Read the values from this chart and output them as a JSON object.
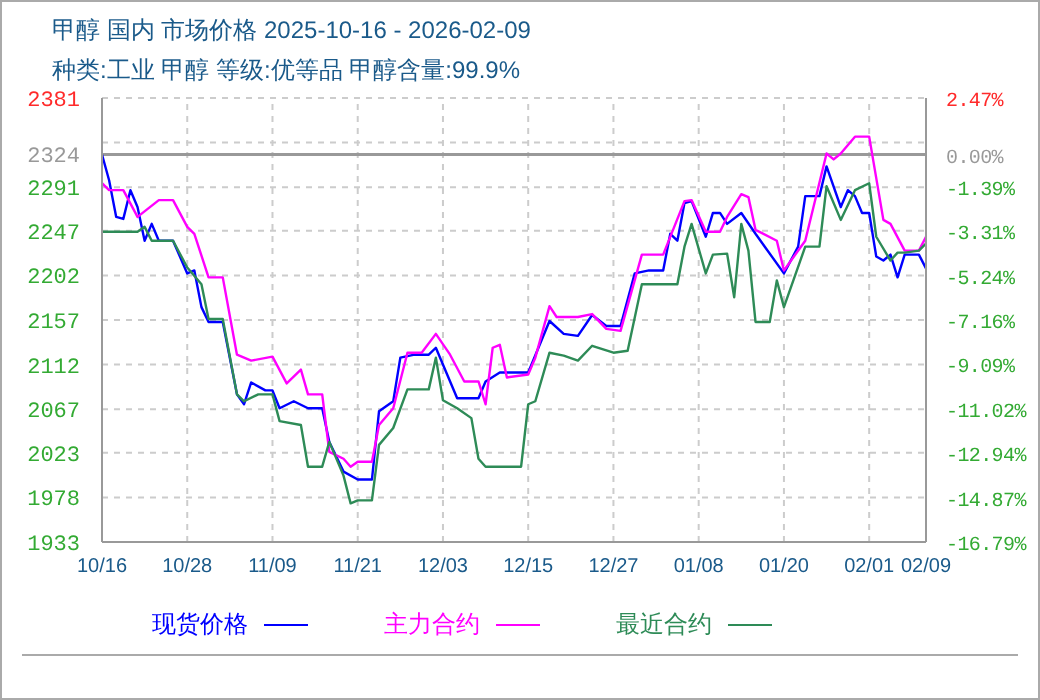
{
  "chart_data": {
    "type": "line",
    "title": "甲醇 国内 市场价格 2025-10-16 - 2026-02-09",
    "subtitle": "种类:工业 甲醇 等级:优等品 甲醇含量:99.9%",
    "xlim": [
      "2025-10-16",
      "2026-02-09"
    ],
    "xticks": [
      {
        "value": "2025-10-16",
        "label": "10/16"
      },
      {
        "value": "2025-10-28",
        "label": "10/28"
      },
      {
        "value": "2025-11-09",
        "label": "11/09"
      },
      {
        "value": "2025-11-21",
        "label": "11/21"
      },
      {
        "value": "2025-12-03",
        "label": "12/03"
      },
      {
        "value": "2025-12-15",
        "label": "12/15"
      },
      {
        "value": "2025-12-27",
        "label": "12/27"
      },
      {
        "value": "2026-01-08",
        "label": "01/08"
      },
      {
        "value": "2026-01-20",
        "label": "01/20"
      },
      {
        "value": "2026-02-01",
        "label": "02/01"
      },
      {
        "value": "2026-02-09",
        "label": "02/09"
      }
    ],
    "ylim": [
      1933,
      2381
    ],
    "yticks": [
      1933,
      1978,
      2023,
      2067,
      2112,
      2157,
      2202,
      2247,
      2291,
      2324,
      {
        "value": 2336,
        "label": null
      },
      2381
    ],
    "y2lim": [
      -16.79,
      2.47
    ],
    "y2ticks": [
      {
        "value": -16.79,
        "label": "-16.79%"
      },
      {
        "value": -14.87,
        "label": "-14.87%"
      },
      {
        "value": -12.94,
        "label": "-12.94%"
      },
      {
        "value": -11.02,
        "label": "-11.02%"
      },
      {
        "value": -9.09,
        "label": "-9.09%"
      },
      {
        "value": -7.16,
        "label": "-7.16%"
      },
      {
        "value": -5.24,
        "label": "-5.24%"
      },
      {
        "value": -3.31,
        "label": "-3.31%"
      },
      {
        "value": -1.39,
        "label": "-1.39%"
      },
      {
        "value": 0,
        "label": "0.00%"
      },
      {
        "value": 2.47,
        "label": "2.47%"
      }
    ],
    "ref_lines": [
      {
        "axis": "y",
        "value": 2324,
        "color": "#999999"
      }
    ],
    "grid": true,
    "legend": "bottom",
    "line_style": "solid",
    "series": [
      {
        "name": "现货价格",
        "color": "#0000ff",
        "x": [
          "2025-10-16",
          "2025-10-17",
          "2025-10-18",
          "2025-10-19",
          "2025-10-20",
          "2025-10-21",
          "2025-10-22",
          "2025-10-23",
          "2025-10-24",
          "2025-10-26",
          "2025-10-28",
          "2025-10-29",
          "2025-10-30",
          "2025-10-31",
          "2025-11-02",
          "2025-11-04",
          "2025-11-05",
          "2025-11-06",
          "2025-11-08",
          "2025-11-09",
          "2025-11-10",
          "2025-11-12",
          "2025-11-14",
          "2025-11-16",
          "2025-11-17",
          "2025-11-19",
          "2025-11-21",
          "2025-11-23",
          "2025-11-24",
          "2025-11-26",
          "2025-11-27",
          "2025-11-29",
          "2025-12-01",
          "2025-12-02",
          "2025-12-05",
          "2025-12-08",
          "2025-12-09",
          "2025-12-11",
          "2025-12-15",
          "2025-12-18",
          "2025-12-20",
          "2025-12-22",
          "2025-12-24",
          "2025-12-26",
          "2025-12-28",
          "2025-12-30",
          "2026-01-01",
          "2026-01-03",
          "2026-01-04",
          "2026-01-05",
          "2026-01-06",
          "2026-01-07",
          "2026-01-09",
          "2026-01-10",
          "2026-01-11",
          "2026-01-12",
          "2026-01-14",
          "2026-01-16",
          "2026-01-20",
          "2026-01-22",
          "2026-01-23",
          "2026-01-25",
          "2026-01-26",
          "2026-01-28",
          "2026-01-29",
          "2026-01-30",
          "2026-01-31",
          "2026-02-01",
          "2026-02-02",
          "2026-02-03",
          "2026-02-04",
          "2026-02-05",
          "2026-02-06",
          "2026-02-08",
          "2026-02-09"
        ],
        "values": [
          2324,
          2298,
          2261,
          2259,
          2288,
          2271,
          2237,
          2254,
          2237,
          2237,
          2204,
          2207,
          2170,
          2155,
          2155,
          2082,
          2072,
          2094,
          2086,
          2086,
          2068,
          2075,
          2068,
          2068,
          2034,
          2004,
          1996,
          1996,
          2065,
          2075,
          2119,
          2122,
          2122,
          2129,
          2078,
          2078,
          2095,
          2104,
          2104,
          2156,
          2143,
          2141,
          2162,
          2151,
          2151,
          2204,
          2207,
          2207,
          2244,
          2237,
          2275,
          2277,
          2241,
          2265,
          2265,
          2254,
          2265,
          2244,
          2204,
          2231,
          2282,
          2282,
          2312,
          2271,
          2288,
          2282,
          2265,
          2265,
          2221,
          2217,
          2223,
          2200,
          2223,
          2223,
          2209
        ]
      },
      {
        "name": "主力合约",
        "color": "#ff00ff",
        "x": [
          "2025-10-16",
          "2025-10-17",
          "2025-10-19",
          "2025-10-21",
          "2025-10-24",
          "2025-10-26",
          "2025-10-28",
          "2025-10-29",
          "2025-10-31",
          "2025-11-02",
          "2025-11-04",
          "2025-11-06",
          "2025-11-09",
          "2025-11-11",
          "2025-11-13",
          "2025-11-14",
          "2025-11-16",
          "2025-11-17",
          "2025-11-19",
          "2025-11-20",
          "2025-11-21",
          "2025-11-23",
          "2025-11-24",
          "2025-11-26",
          "2025-11-28",
          "2025-11-30",
          "2025-12-02",
          "2025-12-04",
          "2025-12-06",
          "2025-12-08",
          "2025-12-09",
          "2025-12-10",
          "2025-12-11",
          "2025-12-12",
          "2025-12-15",
          "2025-12-16",
          "2025-12-18",
          "2025-12-19",
          "2025-12-22",
          "2025-12-24",
          "2025-12-26",
          "2025-12-28",
          "2025-12-31",
          "2026-01-03",
          "2026-01-06",
          "2026-01-07",
          "2026-01-09",
          "2026-01-11",
          "2026-01-12",
          "2026-01-14",
          "2026-01-15",
          "2026-01-16",
          "2026-01-19",
          "2026-01-20",
          "2026-01-23",
          "2026-01-26",
          "2026-01-27",
          "2026-01-28",
          "2026-01-30",
          "2026-02-01",
          "2026-02-03",
          "2026-02-04",
          "2026-02-06",
          "2026-02-08",
          "2026-02-09"
        ],
        "values": [
          2295,
          2288,
          2288,
          2261,
          2278,
          2278,
          2251,
          2244,
          2200,
          2200,
          2122,
          2116,
          2120,
          2093,
          2107,
          2082,
          2082,
          2024,
          2017,
          2009,
          2014,
          2014,
          2051,
          2068,
          2124,
          2124,
          2143,
          2122,
          2095,
          2095,
          2072,
          2129,
          2132,
          2099,
          2102,
          2119,
          2171,
          2160,
          2160,
          2163,
          2148,
          2146,
          2223,
          2223,
          2277,
          2278,
          2246,
          2246,
          2261,
          2284,
          2281,
          2248,
          2237,
          2207,
          2237,
          2325,
          2319,
          2325,
          2342,
          2342,
          2258,
          2254,
          2227,
          2227,
          2241
        ]
      },
      {
        "name": "最近合约",
        "color": "#2e8b57",
        "x": [
          "2025-10-16",
          "2025-10-21",
          "2025-10-22",
          "2025-10-23",
          "2025-10-26",
          "2025-10-28",
          "2025-10-30",
          "2025-10-31",
          "2025-11-02",
          "2025-11-04",
          "2025-11-05",
          "2025-11-07",
          "2025-11-09",
          "2025-11-10",
          "2025-11-13",
          "2025-11-14",
          "2025-11-16",
          "2025-11-17",
          "2025-11-19",
          "2025-11-20",
          "2025-11-21",
          "2025-11-23",
          "2025-11-24",
          "2025-11-26",
          "2025-11-28",
          "2025-12-01",
          "2025-12-02",
          "2025-12-03",
          "2025-12-05",
          "2025-12-07",
          "2025-12-08",
          "2025-12-09",
          "2025-12-14",
          "2025-12-15",
          "2025-12-16",
          "2025-12-18",
          "2025-12-20",
          "2025-12-22",
          "2025-12-24",
          "2025-12-27",
          "2025-12-29",
          "2025-12-31",
          "2026-01-05",
          "2026-01-06",
          "2026-01-07",
          "2026-01-09",
          "2026-01-10",
          "2026-01-12",
          "2026-01-13",
          "2026-01-14",
          "2026-01-15",
          "2026-01-16",
          "2026-01-18",
          "2026-01-19",
          "2026-01-20",
          "2026-01-23",
          "2026-01-25",
          "2026-01-26",
          "2026-01-28",
          "2026-01-30",
          "2026-02-01",
          "2026-02-02",
          "2026-02-04",
          "2026-02-05",
          "2026-02-06",
          "2026-02-08",
          "2026-02-09"
        ],
        "values": [
          2246,
          2246,
          2251,
          2237,
          2237,
          2210,
          2193,
          2158,
          2158,
          2082,
          2075,
          2082,
          2082,
          2055,
          2051,
          2009,
          2009,
          2034,
          2000,
          1972,
          1975,
          1975,
          2031,
          2048,
          2087,
          2087,
          2119,
          2076,
          2068,
          2058,
          2017,
          2009,
          2009,
          2072,
          2075,
          2124,
          2121,
          2116,
          2131,
          2124,
          2126,
          2193,
          2193,
          2231,
          2254,
          2204,
          2223,
          2224,
          2180,
          2254,
          2227,
          2155,
          2155,
          2197,
          2170,
          2231,
          2231,
          2292,
          2258,
          2288,
          2295,
          2241,
          2217,
          2225,
          2225,
          2227,
          2234
        ]
      }
    ]
  }
}
